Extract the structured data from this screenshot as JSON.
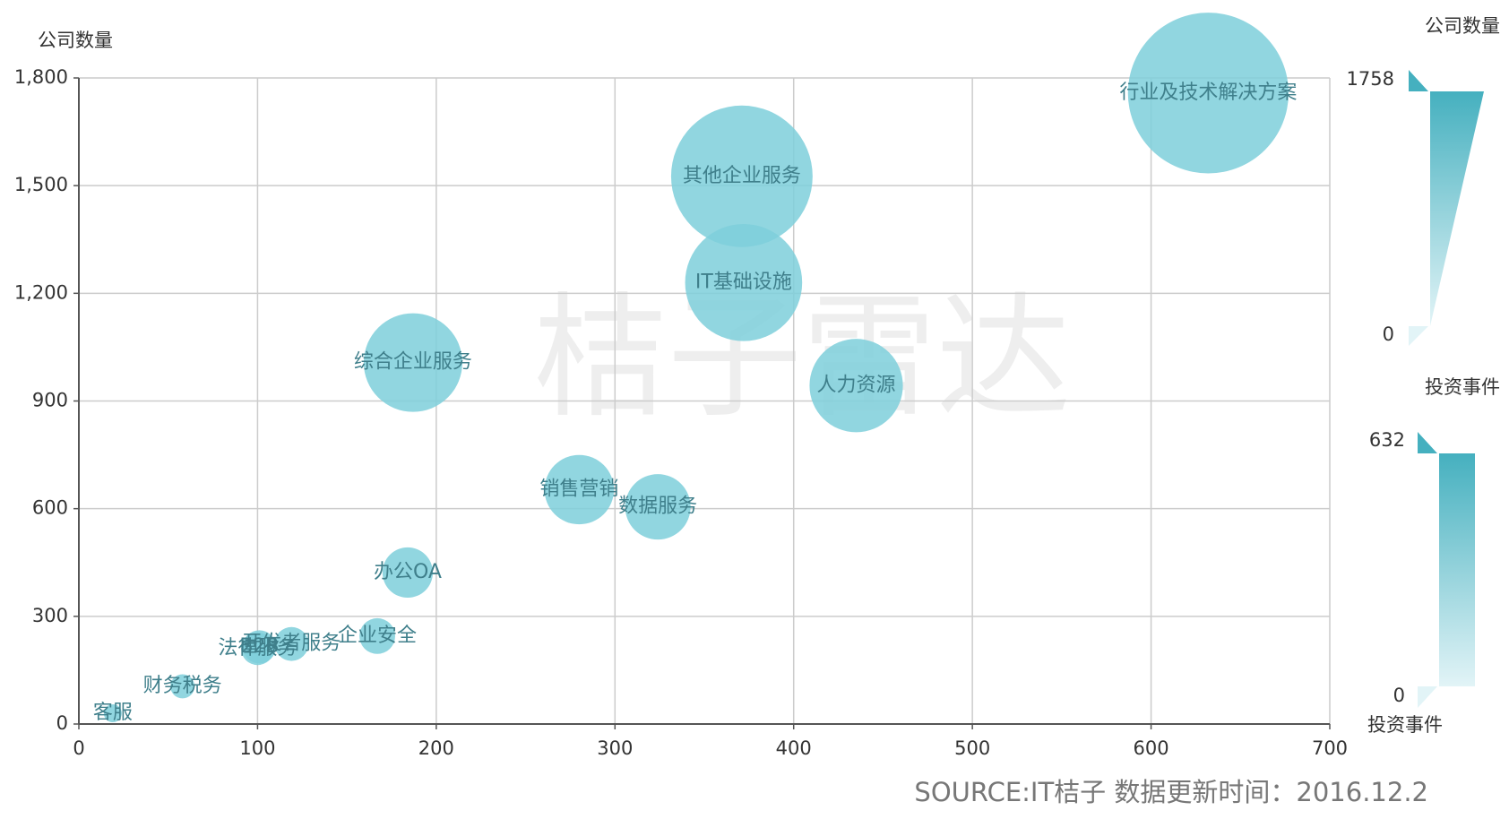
{
  "chart_data": {
    "type": "scatter",
    "y_label": "公司数量",
    "watermark": "桔子雷达",
    "source": "SOURCE:IT桔子 数据更新时间：2016.12.2",
    "labels": [
      "行业及技术解决方案",
      "其他企业服务",
      "IT基础设施",
      "综合企业服务",
      "人力资源",
      "销售营销",
      "数据服务",
      "办公OA",
      "企业安全",
      "开发者服务",
      "B2B",
      "法律服务",
      "财务税务",
      "客服"
    ],
    "x": [
      632,
      371,
      372,
      187,
      435,
      280,
      324,
      184,
      167,
      119,
      101,
      100,
      58,
      19
    ],
    "values": [
      1758,
      1526,
      1230,
      1007,
      943,
      653,
      605,
      422,
      245,
      223,
      215,
      210,
      105,
      30
    ],
    "color": "#7ecfdb",
    "xlim": [
      0,
      700
    ],
    "xticks": [
      0,
      100,
      200,
      300,
      400,
      500,
      600,
      700
    ],
    "ylim": [
      0,
      1800
    ],
    "yticks": [
      0,
      300,
      600,
      900,
      {
        "value": 1200,
        "label": "1,200"
      },
      {
        "value": 1500,
        "label": "1,500"
      },
      {
        "value": 1800,
        "label": "1,800"
      }
    ],
    "grid": true,
    "visual_map": [
      {
        "title": "公司数量",
        "max": 1758,
        "min": 0
      },
      {
        "title": "投资事件",
        "max": 632,
        "min": 0
      }
    ]
  }
}
